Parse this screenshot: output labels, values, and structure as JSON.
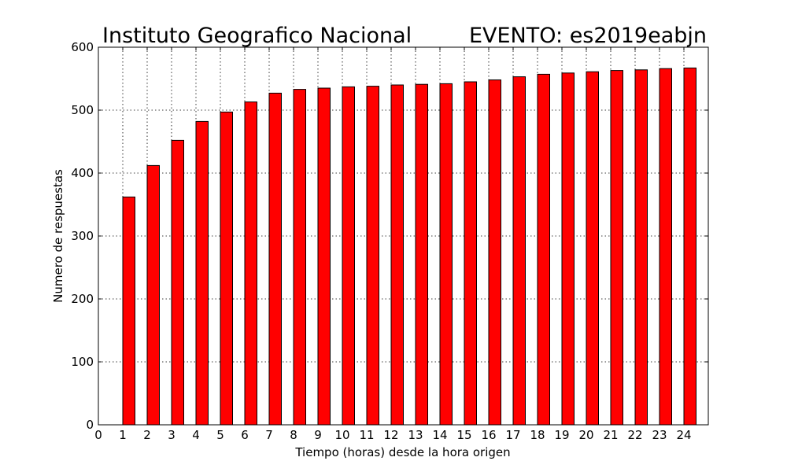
{
  "chart_data": {
    "type": "bar",
    "title_left": "Instituto Geografico Nacional",
    "title_right": "EVENTO: es2019eabjn",
    "xlabel": "Tiempo (horas) desde la hora origen",
    "ylabel": "Numero de respuestas",
    "x": [
      1,
      2,
      3,
      4,
      5,
      6,
      7,
      8,
      9,
      10,
      11,
      12,
      13,
      14,
      15,
      16,
      17,
      18,
      19,
      20,
      21,
      22,
      23,
      24
    ],
    "values": [
      362,
      412,
      452,
      482,
      497,
      513,
      527,
      533,
      535,
      537,
      538,
      540,
      541,
      542,
      545,
      548,
      553,
      557,
      559,
      561,
      563,
      564,
      566,
      567
    ],
    "xlim": [
      0,
      25
    ],
    "ylim": [
      0,
      600
    ],
    "xticks": [
      "0",
      "1",
      "2",
      "3",
      "4",
      "5",
      "6",
      "7",
      "8",
      "9",
      "10",
      "11",
      "12",
      "13",
      "14",
      "15",
      "16",
      "17",
      "18",
      "19",
      "20",
      "21",
      "22",
      "23",
      "24"
    ],
    "yticks": [
      "0",
      "100",
      "200",
      "300",
      "400",
      "500",
      "600"
    ],
    "grid": true,
    "bar_color": "#ff0000"
  }
}
